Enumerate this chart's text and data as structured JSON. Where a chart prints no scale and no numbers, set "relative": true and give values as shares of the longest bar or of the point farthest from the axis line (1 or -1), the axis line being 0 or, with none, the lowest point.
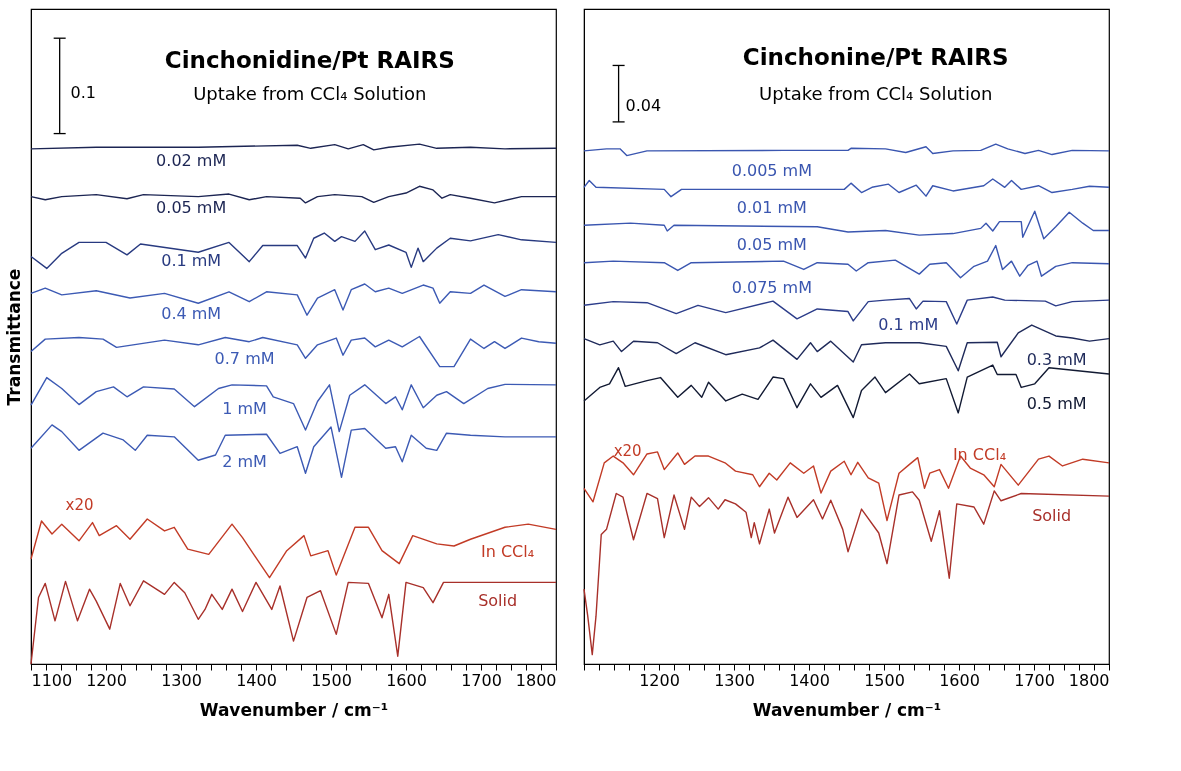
{
  "chart_data": [
    {
      "type": "line",
      "title": "Cinchonidine/Pt RAIRS",
      "subtitle": "Uptake from CCl₄ Solution",
      "xlabel": "Wavenumber / cm⁻¹",
      "ylabel": "Transmittance",
      "relative": true,
      "tick_labels": "x",
      "grid": false,
      "legend": false,
      "xlim": [
        1100,
        1800
      ],
      "xticks": [
        1100,
        {
          "value": 1120,
          "label": null
        },
        {
          "value": 1140,
          "label": null
        },
        {
          "value": 1160,
          "label": null
        },
        {
          "value": 1180,
          "label": null
        },
        1200,
        {
          "value": 1220,
          "label": null
        },
        {
          "value": 1240,
          "label": null
        },
        {
          "value": 1260,
          "label": null
        },
        {
          "value": 1280,
          "label": null
        },
        1300,
        {
          "value": 1320,
          "label": null
        },
        {
          "value": 1340,
          "label": null
        },
        {
          "value": 1360,
          "label": null
        },
        {
          "value": 1380,
          "label": null
        },
        1400,
        {
          "value": 1420,
          "label": null
        },
        {
          "value": 1440,
          "label": null
        },
        {
          "value": 1460,
          "label": null
        },
        {
          "value": 1480,
          "label": null
        },
        1500,
        {
          "value": 1520,
          "label": null
        },
        {
          "value": 1540,
          "label": null
        },
        {
          "value": 1560,
          "label": null
        },
        {
          "value": 1580,
          "label": null
        },
        1600,
        {
          "value": 1620,
          "label": null
        },
        {
          "value": 1640,
          "label": null
        },
        {
          "value": 1660,
          "label": null
        },
        {
          "value": 1680,
          "label": null
        },
        1700,
        {
          "value": 1720,
          "label": null
        },
        {
          "value": 1740,
          "label": null
        },
        {
          "value": 1760,
          "label": null
        },
        {
          "value": 1780,
          "label": null
        },
        1800
      ],
      "annotations": [
        "0.1",
        "x20"
      ],
      "series": [
        {
          "name": "0.02 mM",
          "color": "#1c2553",
          "x": [
            1100,
            1187,
            1323,
            1455,
            1473,
            1505,
            1523,
            1543,
            1557,
            1577,
            1618,
            1641,
            1686,
            1732,
            1800
          ],
          "values": [
            0.991,
            0.994,
            0.994,
            0.998,
            0.992,
            0.999,
            0.991,
            0.999,
            0.989,
            0.994,
            1.0,
            0.992,
            0.994,
            0.991,
            0.992
          ]
        },
        {
          "name": "0.05 mM",
          "color": "#1c2553",
          "x": [
            1100,
            1119,
            1141,
            1187,
            1228,
            1250,
            1323,
            1364,
            1391,
            1414,
            1459,
            1466,
            1482,
            1505,
            1541,
            1557,
            1577,
            1600,
            1618,
            1636,
            1648,
            1659,
            1686,
            1718,
            1754,
            1800
          ],
          "values": [
            0.899,
            0.893,
            0.899,
            0.903,
            0.895,
            0.903,
            0.899,
            0.904,
            0.893,
            0.899,
            0.896,
            0.887,
            0.899,
            0.903,
            0.899,
            0.888,
            0.899,
            0.906,
            0.919,
            0.912,
            0.896,
            0.903,
            0.896,
            0.887,
            0.899,
            0.899
          ]
        },
        {
          "name": "0.1 mM",
          "color": "#283a80",
          "x": [
            1100,
            1121,
            1141,
            1164,
            1200,
            1228,
            1246,
            1323,
            1364,
            1391,
            1409,
            1455,
            1466,
            1477,
            1491,
            1505,
            1514,
            1532,
            1545,
            1559,
            1577,
            1600,
            1607,
            1616,
            1623,
            1641,
            1659,
            1686,
            1723,
            1754,
            1800
          ],
          "values": [
            0.784,
            0.761,
            0.79,
            0.811,
            0.811,
            0.787,
            0.808,
            0.792,
            0.811,
            0.774,
            0.805,
            0.805,
            0.781,
            0.819,
            0.829,
            0.813,
            0.822,
            0.813,
            0.833,
            0.797,
            0.806,
            0.792,
            0.763,
            0.8,
            0.774,
            0.8,
            0.819,
            0.814,
            0.826,
            0.816,
            0.811
          ]
        },
        {
          "name": "0.4 mM",
          "color": "#3c5ab4",
          "x": [
            1100,
            1119,
            1141,
            1187,
            1232,
            1278,
            1323,
            1364,
            1391,
            1414,
            1455,
            1468,
            1482,
            1505,
            1516,
            1527,
            1545,
            1559,
            1577,
            1595,
            1623,
            1636,
            1645,
            1659,
            1686,
            1704,
            1732,
            1754,
            1800
          ],
          "values": [
            0.713,
            0.723,
            0.71,
            0.718,
            0.704,
            0.713,
            0.694,
            0.716,
            0.697,
            0.716,
            0.71,
            0.671,
            0.704,
            0.72,
            0.681,
            0.72,
            0.731,
            0.716,
            0.723,
            0.713,
            0.729,
            0.723,
            0.694,
            0.716,
            0.713,
            0.729,
            0.707,
            0.72,
            0.716
          ]
        },
        {
          "name": "0.7 mM",
          "color": "#3c5ab4",
          "x": [
            1100,
            1119,
            1164,
            1196,
            1214,
            1278,
            1323,
            1359,
            1391,
            1409,
            1455,
            1466,
            1482,
            1507,
            1516,
            1527,
            1545,
            1559,
            1577,
            1595,
            1618,
            1645,
            1664,
            1686,
            1704,
            1718,
            1732,
            1754,
            1777,
            1800
          ],
          "values": [
            0.601,
            0.625,
            0.628,
            0.625,
            0.609,
            0.623,
            0.614,
            0.628,
            0.62,
            0.628,
            0.614,
            0.588,
            0.614,
            0.627,
            0.594,
            0.623,
            0.627,
            0.61,
            0.623,
            0.61,
            0.63,
            0.572,
            0.572,
            0.625,
            0.607,
            0.62,
            0.607,
            0.627,
            0.62,
            0.617
          ]
        },
        {
          "name": "1 mM",
          "color": "#3c5ab4",
          "x": [
            1100,
            1121,
            1141,
            1164,
            1187,
            1210,
            1228,
            1250,
            1291,
            1318,
            1350,
            1368,
            1414,
            1423,
            1450,
            1466,
            1482,
            1498,
            1511,
            1525,
            1545,
            1573,
            1586,
            1595,
            1607,
            1623,
            1641,
            1654,
            1677,
            1709,
            1732,
            1800
          ],
          "values": [
            0.498,
            0.551,
            0.53,
            0.499,
            0.524,
            0.533,
            0.514,
            0.533,
            0.529,
            0.495,
            0.53,
            0.537,
            0.535,
            0.514,
            0.501,
            0.45,
            0.505,
            0.537,
            0.447,
            0.517,
            0.537,
            0.501,
            0.514,
            0.489,
            0.537,
            0.493,
            0.517,
            0.524,
            0.501,
            0.53,
            0.538,
            0.537
          ]
        },
        {
          "name": "2 mM",
          "color": "#3c5ab4",
          "x": [
            1100,
            1128,
            1141,
            1164,
            1196,
            1223,
            1239,
            1255,
            1291,
            1323,
            1346,
            1359,
            1414,
            1432,
            1455,
            1466,
            1477,
            1500,
            1514,
            1527,
            1545,
            1573,
            1586,
            1595,
            1607,
            1627,
            1641,
            1654,
            1686,
            1732,
            1800
          ],
          "values": [
            0.415,
            0.46,
            0.447,
            0.411,
            0.444,
            0.431,
            0.411,
            0.44,
            0.437,
            0.392,
            0.402,
            0.44,
            0.442,
            0.405,
            0.418,
            0.367,
            0.418,
            0.456,
            0.359,
            0.45,
            0.453,
            0.415,
            0.418,
            0.389,
            0.44,
            0.415,
            0.411,
            0.444,
            0.44,
            0.437,
            0.437
          ]
        },
        {
          "name": "In CCl₄",
          "color": "#c23b26",
          "x": [
            1100,
            1114,
            1128,
            1141,
            1164,
            1182,
            1191,
            1214,
            1232,
            1255,
            1278,
            1291,
            1309,
            1337,
            1368,
            1382,
            1418,
            1441,
            1464,
            1473,
            1496,
            1507,
            1532,
            1550,
            1568,
            1591,
            1609,
            1641,
            1664,
            1686,
            1732,
            1763,
            1800
          ],
          "values": [
            0.202,
            0.275,
            0.25,
            0.269,
            0.237,
            0.272,
            0.247,
            0.266,
            0.24,
            0.279,
            0.256,
            0.263,
            0.221,
            0.211,
            0.269,
            0.243,
            0.166,
            0.218,
            0.247,
            0.208,
            0.218,
            0.171,
            0.263,
            0.263,
            0.218,
            0.193,
            0.247,
            0.231,
            0.227,
            0.24,
            0.263,
            0.269,
            0.259
          ]
        },
        {
          "name": "Solid",
          "color": "#a8302a",
          "x": [
            1100,
            1110,
            1119,
            1132,
            1146,
            1162,
            1178,
            1187,
            1205,
            1219,
            1232,
            1250,
            1278,
            1291,
            1305,
            1323,
            1332,
            1341,
            1355,
            1368,
            1382,
            1400,
            1421,
            1432,
            1450,
            1468,
            1486,
            1507,
            1523,
            1550,
            1568,
            1577,
            1589,
            1600,
            1623,
            1636,
            1650,
            1800
          ],
          "values": [
            0.0,
            0.128,
            0.155,
            0.083,
            0.159,
            0.083,
            0.144,
            0.121,
            0.067,
            0.155,
            0.112,
            0.16,
            0.134,
            0.157,
            0.137,
            0.086,
            0.105,
            0.134,
            0.105,
            0.144,
            0.101,
            0.157,
            0.105,
            0.15,
            0.044,
            0.128,
            0.141,
            0.057,
            0.157,
            0.155,
            0.089,
            0.134,
            0.015,
            0.157,
            0.147,
            0.118,
            0.157,
            0.157
          ]
        }
      ]
    },
    {
      "type": "line",
      "title": "Cinchonine/Pt RAIRS",
      "subtitle": "Uptake from CCl₄ Solution",
      "xlabel": "Wavenumber / cm⁻¹",
      "relative": true,
      "tick_labels": "x",
      "grid": false,
      "legend": false,
      "xlim": [
        1100,
        1800
      ],
      "xticks": [
        {
          "value": 1100,
          "label": null
        },
        {
          "value": 1120,
          "label": null
        },
        {
          "value": 1140,
          "label": null
        },
        {
          "value": 1160,
          "label": null
        },
        {
          "value": 1180,
          "label": null
        },
        1200,
        {
          "value": 1220,
          "label": null
        },
        {
          "value": 1240,
          "label": null
        },
        {
          "value": 1260,
          "label": null
        },
        {
          "value": 1280,
          "label": null
        },
        1300,
        {
          "value": 1320,
          "label": null
        },
        {
          "value": 1340,
          "label": null
        },
        {
          "value": 1360,
          "label": null
        },
        {
          "value": 1380,
          "label": null
        },
        1400,
        {
          "value": 1420,
          "label": null
        },
        {
          "value": 1440,
          "label": null
        },
        {
          "value": 1460,
          "label": null
        },
        {
          "value": 1480,
          "label": null
        },
        1500,
        {
          "value": 1520,
          "label": null
        },
        {
          "value": 1540,
          "label": null
        },
        {
          "value": 1560,
          "label": null
        },
        {
          "value": 1580,
          "label": null
        },
        1600,
        {
          "value": 1620,
          "label": null
        },
        {
          "value": 1640,
          "label": null
        },
        {
          "value": 1660,
          "label": null
        },
        {
          "value": 1680,
          "label": null
        },
        1700,
        {
          "value": 1720,
          "label": null
        },
        {
          "value": 1740,
          "label": null
        },
        {
          "value": 1760,
          "label": null
        },
        {
          "value": 1780,
          "label": null
        },
        1800
      ],
      "annotations": [
        "0.04",
        "x20"
      ],
      "series": [
        {
          "name": "0.005 mM",
          "color": "#3a56b0",
          "x": [
            1100,
            1130,
            1148,
            1157,
            1184,
            1366,
            1452,
            1456,
            1502,
            1529,
            1556,
            1565,
            1592,
            1629,
            1649,
            1665,
            1688,
            1706,
            1724,
            1751,
            1800
          ],
          "values": [
            0.987,
            0.991,
            0.991,
            0.978,
            0.987,
            0.988,
            0.988,
            0.992,
            0.991,
            0.984,
            0.995,
            0.982,
            0.987,
            0.988,
            1.0,
            0.991,
            0.982,
            0.988,
            0.98,
            0.988,
            0.987
          ]
        },
        {
          "name": "0.01 mM",
          "color": "#3a56b0",
          "x": [
            1100,
            1107,
            1116,
            1207,
            1216,
            1230,
            1447,
            1456,
            1470,
            1484,
            1506,
            1520,
            1543,
            1556,
            1565,
            1592,
            1633,
            1645,
            1661,
            1670,
            1683,
            1706,
            1724,
            1751,
            1774,
            1800
          ],
          "values": [
            0.917,
            0.93,
            0.917,
            0.913,
            0.899,
            0.913,
            0.913,
            0.925,
            0.907,
            0.917,
            0.923,
            0.907,
            0.921,
            0.9,
            0.92,
            0.91,
            0.92,
            0.933,
            0.917,
            0.93,
            0.913,
            0.92,
            0.907,
            0.913,
            0.919,
            0.917
          ]
        },
        {
          "name": "0.05 mM",
          "color": "#3a56b0",
          "x": [
            1100,
            1162,
            1207,
            1211,
            1220,
            1411,
            1452,
            1502,
            1547,
            1592,
            1629,
            1636,
            1645,
            1654,
            1683,
            1685,
            1701,
            1713,
            1729,
            1747,
            1765,
            1779,
            1800
          ],
          "values": [
            0.844,
            0.848,
            0.844,
            0.833,
            0.844,
            0.841,
            0.831,
            0.834,
            0.825,
            0.828,
            0.838,
            0.848,
            0.833,
            0.851,
            0.851,
            0.821,
            0.871,
            0.818,
            0.841,
            0.869,
            0.848,
            0.834,
            0.834
          ]
        },
        {
          "name": "0.075 mM",
          "color": "#3a56b0",
          "x": [
            1100,
            1139,
            1207,
            1225,
            1243,
            1366,
            1393,
            1411,
            1452,
            1463,
            1479,
            1515,
            1547,
            1561,
            1583,
            1602,
            1620,
            1638,
            1649,
            1658,
            1670,
            1681,
            1692,
            1704,
            1710,
            1729,
            1751,
            1800
          ],
          "values": [
            0.772,
            0.775,
            0.772,
            0.757,
            0.772,
            0.775,
            0.759,
            0.772,
            0.769,
            0.756,
            0.772,
            0.777,
            0.75,
            0.769,
            0.772,
            0.743,
            0.765,
            0.775,
            0.805,
            0.759,
            0.775,
            0.746,
            0.767,
            0.775,
            0.746,
            0.765,
            0.772,
            0.77
          ]
        },
        {
          "name": "0.1 mM",
          "color": "#2c3d8a",
          "x": [
            1100,
            1139,
            1184,
            1223,
            1252,
            1289,
            1352,
            1384,
            1411,
            1452,
            1459,
            1479,
            1502,
            1534,
            1543,
            1552,
            1583,
            1597,
            1611,
            1645,
            1661,
            1715,
            1729,
            1751,
            1800
          ],
          "values": [
            0.69,
            0.697,
            0.695,
            0.674,
            0.69,
            0.676,
            0.698,
            0.664,
            0.683,
            0.678,
            0.66,
            0.697,
            0.7,
            0.703,
            0.683,
            0.698,
            0.697,
            0.654,
            0.7,
            0.706,
            0.7,
            0.698,
            0.689,
            0.697,
            0.7
          ]
        },
        {
          "name": "0.3 mM",
          "color": "#1f2a5a",
          "x": [
            1100,
            1121,
            1139,
            1150,
            1166,
            1198,
            1223,
            1248,
            1289,
            1334,
            1352,
            1384,
            1402,
            1411,
            1429,
            1459,
            1470,
            1502,
            1547,
            1583,
            1599,
            1611,
            1651,
            1656,
            1679,
            1697,
            1729,
            1751,
            1774,
            1800
          ],
          "values": [
            0.626,
            0.614,
            0.621,
            0.601,
            0.621,
            0.618,
            0.597,
            0.618,
            0.595,
            0.608,
            0.623,
            0.586,
            0.618,
            0.601,
            0.621,
            0.581,
            0.614,
            0.618,
            0.618,
            0.611,
            0.564,
            0.618,
            0.619,
            0.591,
            0.637,
            0.652,
            0.631,
            0.627,
            0.621,
            0.626
          ]
        },
        {
          "name": "0.5 mM",
          "color": "#121a33",
          "x": [
            1100,
            1121,
            1134,
            1146,
            1155,
            1184,
            1202,
            1225,
            1243,
            1257,
            1266,
            1289,
            1311,
            1332,
            1352,
            1366,
            1384,
            1402,
            1416,
            1438,
            1459,
            1470,
            1488,
            1502,
            1534,
            1547,
            1583,
            1599,
            1611,
            1645,
            1651,
            1676,
            1683,
            1701,
            1720,
            1800
          ],
          "values": [
            0.506,
            0.532,
            0.539,
            0.57,
            0.534,
            0.545,
            0.551,
            0.513,
            0.536,
            0.513,
            0.542,
            0.506,
            0.519,
            0.509,
            0.552,
            0.549,
            0.493,
            0.539,
            0.513,
            0.536,
            0.474,
            0.526,
            0.552,
            0.522,
            0.558,
            0.539,
            0.549,
            0.483,
            0.552,
            0.575,
            0.557,
            0.557,
            0.532,
            0.539,
            0.57,
            0.558
          ]
        },
        {
          "name": "In CCl₄",
          "color": "#c23b26",
          "x": [
            1100,
            1112,
            1127,
            1139,
            1152,
            1166,
            1184,
            1198,
            1207,
            1225,
            1234,
            1248,
            1266,
            1288,
            1302,
            1325,
            1334,
            1347,
            1357,
            1375,
            1393,
            1406,
            1416,
            1429,
            1447,
            1456,
            1465,
            1479,
            1493,
            1504,
            1520,
            1534,
            1545,
            1554,
            1561,
            1574,
            1586,
            1602,
            1615,
            1633,
            1647,
            1656,
            1679,
            1706,
            1720,
            1738,
            1765,
            1800
          ],
          "values": [
            0.338,
            0.312,
            0.387,
            0.4,
            0.387,
            0.364,
            0.404,
            0.408,
            0.374,
            0.406,
            0.384,
            0.4,
            0.4,
            0.387,
            0.371,
            0.364,
            0.341,
            0.367,
            0.354,
            0.387,
            0.367,
            0.381,
            0.329,
            0.371,
            0.39,
            0.364,
            0.388,
            0.358,
            0.348,
            0.276,
            0.367,
            0.384,
            0.397,
            0.338,
            0.367,
            0.374,
            0.338,
            0.4,
            0.377,
            0.364,
            0.341,
            0.384,
            0.344,
            0.394,
            0.4,
            0.381,
            0.394,
            0.387
          ]
        },
        {
          "name": "Solid",
          "color": "#a8302a",
          "x": [
            1100,
            1105,
            1111,
            1116,
            1123,
            1130,
            1143,
            1152,
            1166,
            1184,
            1198,
            1207,
            1220,
            1234,
            1243,
            1254,
            1266,
            1279,
            1288,
            1302,
            1316,
            1323,
            1327,
            1334,
            1347,
            1354,
            1372,
            1384,
            1406,
            1418,
            1429,
            1445,
            1452,
            1470,
            1493,
            1504,
            1520,
            1538,
            1547,
            1563,
            1574,
            1587,
            1597,
            1620,
            1633,
            1647,
            1656,
            1683,
            1800
          ],
          "values": [
            0.144,
            0.092,
            0.018,
            0.092,
            0.249,
            0.259,
            0.328,
            0.321,
            0.239,
            0.328,
            0.318,
            0.243,
            0.325,
            0.259,
            0.321,
            0.303,
            0.32,
            0.298,
            0.316,
            0.308,
            0.292,
            0.243,
            0.272,
            0.231,
            0.298,
            0.252,
            0.321,
            0.282,
            0.316,
            0.279,
            0.315,
            0.259,
            0.216,
            0.298,
            0.252,
            0.193,
            0.325,
            0.331,
            0.315,
            0.236,
            0.295,
            0.165,
            0.308,
            0.302,
            0.269,
            0.333,
            0.314,
            0.328,
            0.323
          ]
        }
      ]
    }
  ]
}
